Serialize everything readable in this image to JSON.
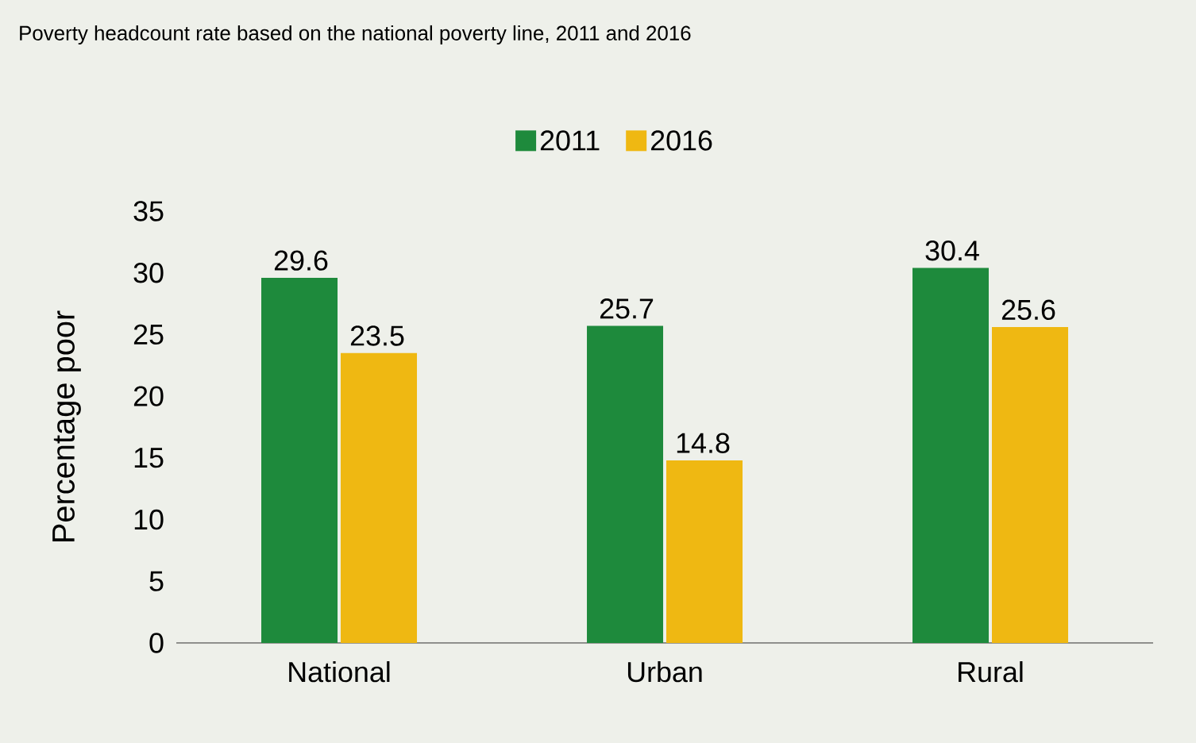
{
  "chart_data": {
    "type": "bar",
    "title": "Poverty headcount rate based on the national poverty line, 2011 and 2016",
    "ylabel": "Percentage poor",
    "categories": [
      "National",
      "Urban",
      "Rural"
    ],
    "series": [
      {
        "name": "2011",
        "color": "#1e8a3c",
        "values": [
          29.6,
          25.7,
          30.4
        ]
      },
      {
        "name": "2016",
        "color": "#efb812",
        "values": [
          23.5,
          14.8,
          25.6
        ]
      }
    ],
    "ylim": [
      0,
      35
    ],
    "yticks": [
      0,
      5,
      10,
      15,
      20,
      25,
      30,
      35
    ],
    "data_labels": true,
    "legend": "top",
    "grid": false
  }
}
